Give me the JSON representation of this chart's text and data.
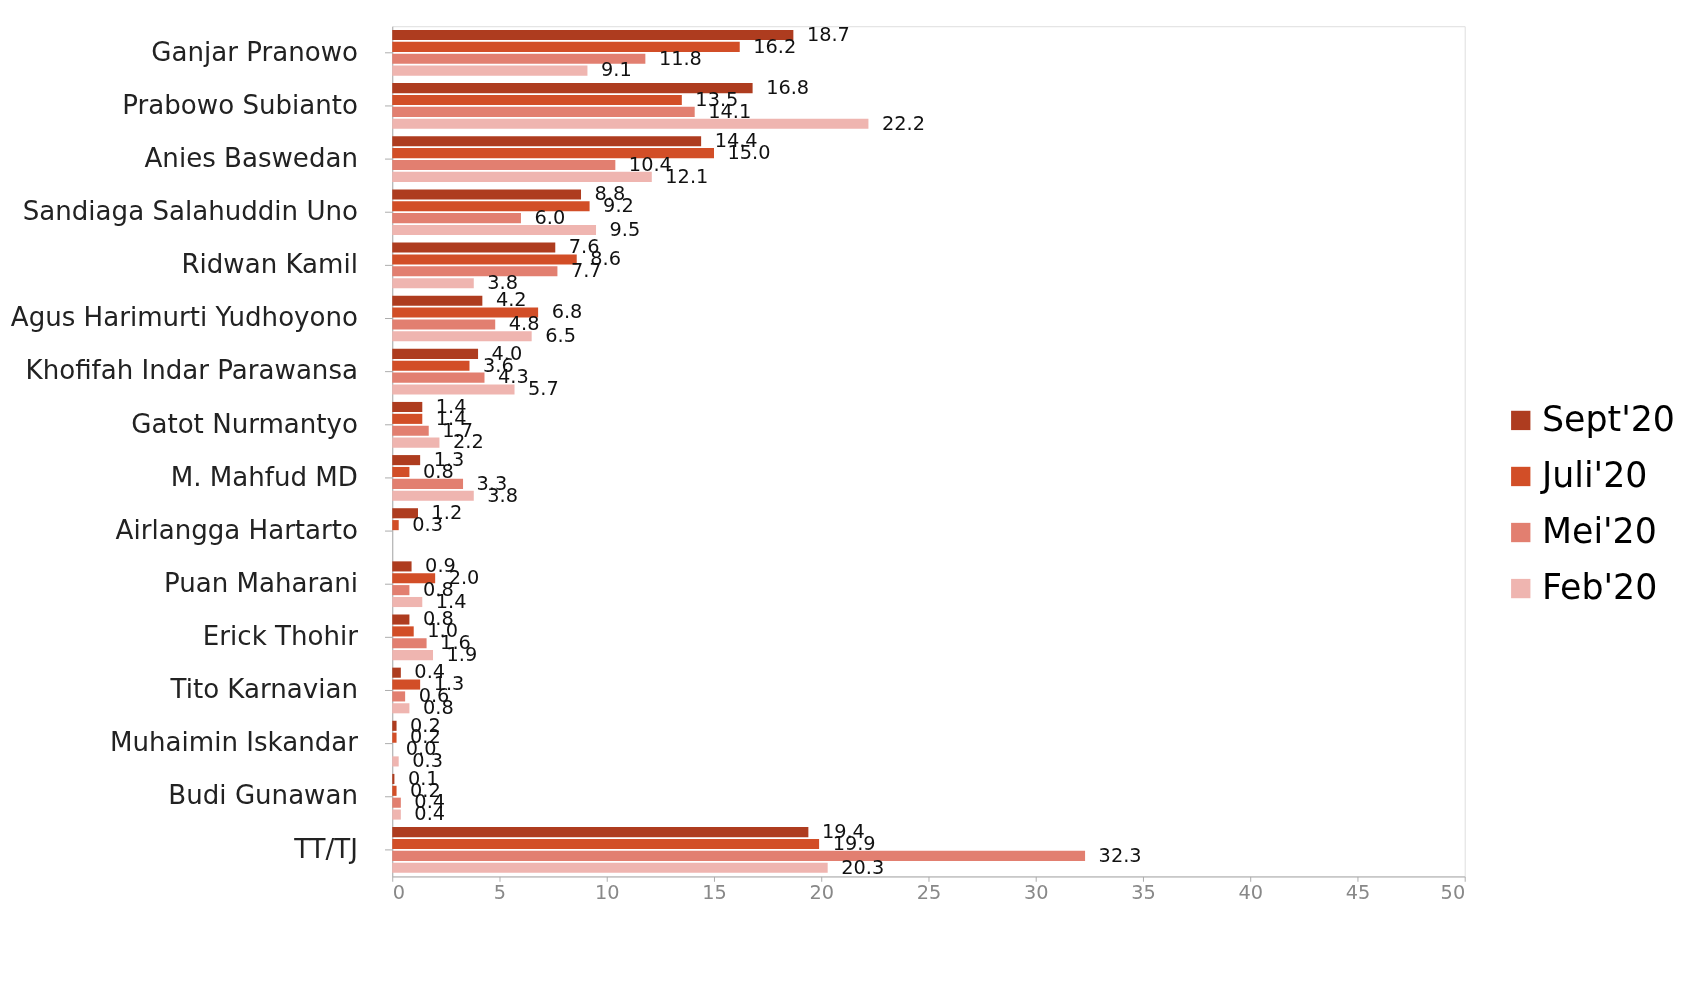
{
  "chart_data": {
    "type": "bar",
    "orientation": "horizontal",
    "categories": [
      "Ganjar Pranowo",
      "Prabowo Subianto",
      "Anies Baswedan",
      "Sandiaga Salahuddin Uno",
      "Ridwan Kamil",
      "Agus Harimurti Yudhoyono",
      "Khofifah Indar Parawansa",
      "Gatot Nurmantyo",
      "M. Mahfud MD",
      "Airlangga Hartarto",
      "Puan Maharani",
      "Erick Thohir",
      "Tito Karnavian",
      "Muhaimin Iskandar",
      "Budi Gunawan",
      "TT/TJ"
    ],
    "series": [
      {
        "name": "Sept'20",
        "color": "#ae3c1f",
        "values": [
          18.7,
          16.8,
          14.4,
          8.8,
          7.6,
          4.2,
          4.0,
          1.4,
          1.3,
          1.2,
          0.9,
          0.8,
          0.4,
          0.2,
          0.1,
          19.4
        ],
        "value_labels": [
          "18.7",
          "16.8",
          "14.4",
          "8.8",
          "7.6",
          "4.2",
          "4.0",
          "1.4",
          "1.3",
          "1.2",
          "0.9",
          "0.8",
          "0.4",
          "0.2",
          "0.1",
          "19.4"
        ]
      },
      {
        "name": "Juli'20",
        "color": "#d24e27",
        "values": [
          16.2,
          13.5,
          15.0,
          9.2,
          8.6,
          6.8,
          3.6,
          1.4,
          0.8,
          0.3,
          2.0,
          1.0,
          1.3,
          0.2,
          0.2,
          19.9
        ],
        "value_labels": [
          "16.2",
          "13.5",
          "15.0",
          "9.2",
          "8.6",
          "6.8",
          "3.6",
          "1.4",
          "0.8",
          "0.3",
          "2.0",
          "1.0",
          "1.3",
          "0.2",
          "0.2",
          "19.9"
        ]
      },
      {
        "name": "Mei'20",
        "color": "#e27f70",
        "values": [
          11.8,
          14.1,
          10.4,
          6.0,
          7.7,
          4.8,
          4.3,
          1.7,
          3.3,
          null,
          0.8,
          1.6,
          0.6,
          0.0,
          0.4,
          32.3
        ],
        "value_labels": [
          "11.8",
          "14.1",
          "10.4",
          "6.0",
          "7.7",
          "4.8",
          "4.3",
          "1.7",
          "3.3",
          null,
          "0.8",
          "1.6",
          "0.6",
          "0.0",
          "0.4",
          "32.3"
        ]
      },
      {
        "name": "Feb'20",
        "color": "#efb5b0",
        "values": [
          9.1,
          22.2,
          12.1,
          9.5,
          3.8,
          6.5,
          5.7,
          2.2,
          3.8,
          null,
          1.4,
          1.9,
          0.8,
          0.3,
          0.4,
          20.3
        ],
        "value_labels": [
          "9.1",
          "22.2",
          "12.1",
          "9.5",
          "3.8",
          "6.5",
          "5.7",
          "2.2",
          "3.8",
          null,
          "1.4",
          "1.9",
          "0.8",
          "0.3",
          "0.4",
          "20.3"
        ]
      }
    ],
    "xlim": [
      0,
      50
    ],
    "xticks": [
      0,
      5,
      10,
      15,
      20,
      25,
      30,
      35,
      40,
      45,
      50
    ],
    "legend": "right",
    "grid": false
  }
}
